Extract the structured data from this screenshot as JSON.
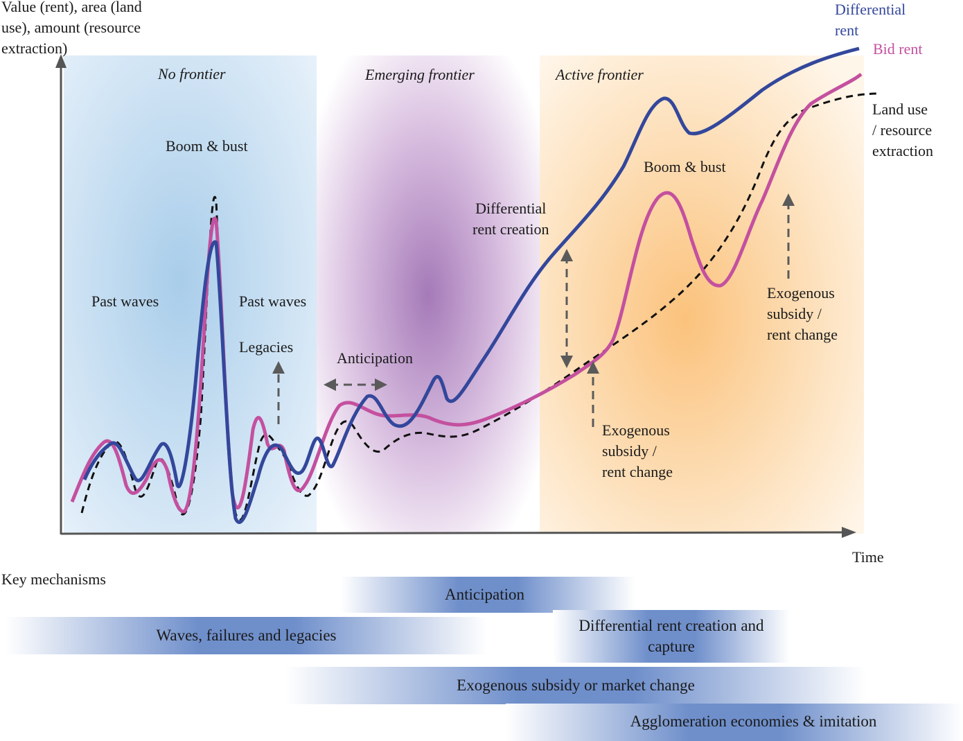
{
  "y_axis_label": "Value (rent), area (land\nuse), amount (resource\nextraction)",
  "x_axis_label": "Time",
  "phases": {
    "no_frontier": "No frontier",
    "emerging_frontier": "Emerging frontier",
    "active_frontier": "Active frontier"
  },
  "legend": {
    "differential_rent": "Differential\nrent",
    "bid_rent": "Bid rent",
    "land_use": "Land use\n/ resource\nextraction"
  },
  "annotations": {
    "boom_bust_1": "Boom & bust",
    "past_waves_left": "Past waves",
    "past_waves_right": "Past waves",
    "legacies": "Legacies",
    "anticipation": "Anticipation",
    "differential_rent_creation": "Differential\nrent creation",
    "boom_bust_2": "Boom & bust",
    "exogenous_1": "Exogenous\nsubsidy /\nrent change",
    "exogenous_2": "Exogenous\nsubsidy /\nrent change"
  },
  "key_mechanisms": {
    "title": "Key mechanisms",
    "anticipation": "Anticipation",
    "waves": "Waves, failures and legacies",
    "differential": "Differential rent creation and\ncapture",
    "exogenous": "Exogenous subsidy or market change",
    "agglomeration": "Agglomeration economies & imitation"
  },
  "colors": {
    "differential_rent": "#33479b",
    "bid_rent": "#c4509f",
    "land_use": "#111111",
    "no_frontier_bg": "#a9cdea",
    "emerging_bg": "#a57ab8",
    "active_bg": "#fbc27c",
    "mechanism_bar": "#5a80c4"
  }
}
